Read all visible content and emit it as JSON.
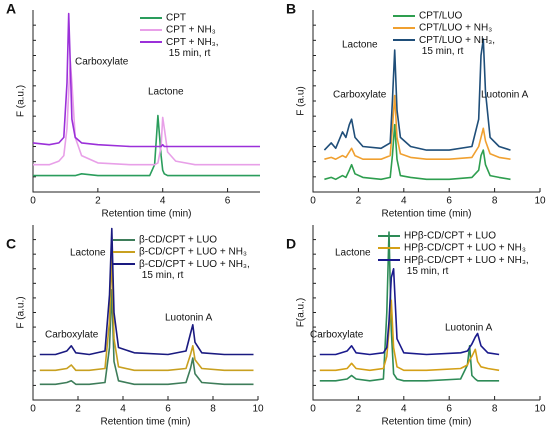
{
  "chart_data": [
    {
      "type": "line",
      "panel": "A",
      "xlabel": "Retention time (min)",
      "ylabel": "F (a.u.)",
      "annotations": [
        "Carboxylate",
        "Lactone"
      ],
      "xlim": [
        0,
        7
      ],
      "xticks": [
        0,
        2,
        4,
        6
      ],
      "ylim": [
        0,
        100
      ],
      "x": [
        0,
        0.5,
        0.8,
        0.95,
        1.05,
        1.1,
        1.15,
        1.2,
        1.3,
        1.5,
        2,
        3,
        3.6,
        3.75,
        3.85,
        3.95,
        4.0,
        4.05,
        4.15,
        4.4,
        5,
        6,
        7
      ],
      "series": [
        {
          "name": "CPT",
          "color": "#2a9d5c",
          "values": [
            9,
            9,
            9,
            9,
            9,
            9,
            9,
            9,
            9,
            10,
            9,
            9,
            9,
            15,
            42,
            20,
            12,
            10,
            9,
            9,
            9,
            9,
            9
          ]
        },
        {
          "name": "CPT + NH₃",
          "color": "#e8a0e8",
          "values": [
            15,
            15,
            17,
            20,
            35,
            55,
            72,
            60,
            30,
            20,
            16,
            15,
            15,
            15,
            16,
            25,
            41,
            35,
            22,
            17,
            15,
            15,
            15
          ]
        },
        {
          "name": "CPT + NH₃, 15 min, rt",
          "color": "#9b30d9",
          "values": [
            27,
            26,
            27,
            30,
            60,
            98,
            70,
            40,
            30,
            27,
            26,
            25,
            25,
            25,
            25,
            25,
            26,
            25,
            25,
            25,
            25,
            25,
            25
          ]
        }
      ]
    },
    {
      "type": "line",
      "panel": "B",
      "xlabel": "Retention time (min)",
      "ylabel": "F (a.u)",
      "annotations": [
        "Carboxylate",
        "Lactone",
        "Luotonin A"
      ],
      "xlim": [
        0,
        10
      ],
      "xticks": [
        0,
        2,
        4,
        6,
        8,
        10
      ],
      "ylim": [
        0,
        100
      ],
      "x": [
        0.5,
        0.8,
        1.0,
        1.3,
        1.45,
        1.6,
        1.7,
        1.85,
        2.2,
        3,
        3.4,
        3.5,
        3.6,
        3.7,
        3.85,
        4.3,
        5,
        6,
        7,
        7.3,
        7.4,
        7.5,
        7.6,
        7.8,
        8.2,
        8.7
      ],
      "series": [
        {
          "name": "CPT/LUO",
          "color": "#2e9e4f",
          "values": [
            7,
            8,
            7,
            9,
            8,
            12,
            15,
            10,
            8,
            7,
            8,
            20,
            37,
            18,
            9,
            8,
            7,
            7,
            8,
            12,
            20,
            23,
            15,
            9,
            8,
            7
          ]
        },
        {
          "name": "CPT/LUO + NH₃",
          "color": "#f0a030",
          "values": [
            18,
            19,
            18,
            20,
            19,
            22,
            24,
            20,
            18,
            18,
            20,
            35,
            53,
            30,
            21,
            19,
            18,
            18,
            19,
            25,
            30,
            35,
            28,
            21,
            19,
            18
          ]
        },
        {
          "name": "CPT/LUO + NH₃, 15 min, rt",
          "color": "#1f4e79",
          "values": [
            23,
            27,
            24,
            33,
            30,
            37,
            40,
            30,
            25,
            24,
            27,
            50,
            78,
            45,
            30,
            25,
            23,
            23,
            25,
            40,
            75,
            84,
            55,
            30,
            25,
            23
          ]
        }
      ]
    },
    {
      "type": "line",
      "panel": "C",
      "xlabel": "Retention time (min)",
      "ylabel": "F (a.u.)",
      "annotations": [
        "Carboxylate",
        "Lactone",
        "Luotonin A"
      ],
      "xlim": [
        0,
        10
      ],
      "xticks": [
        0,
        2,
        4,
        6,
        8,
        10
      ],
      "ylim": [
        0,
        100
      ],
      "x": [
        0.3,
        1.0,
        1.5,
        1.7,
        1.9,
        2.5,
        3.2,
        3.4,
        3.5,
        3.6,
        3.8,
        4.5,
        6,
        6.8,
        7.0,
        7.1,
        7.2,
        7.5,
        8.5,
        9.8
      ],
      "series": [
        {
          "name": "β-CD/CPT + LUO",
          "color": "#3e7d5a",
          "values": [
            9,
            9,
            10,
            11,
            9,
            9,
            10,
            30,
            63,
            22,
            11,
            9,
            9,
            10,
            18,
            24,
            15,
            10,
            9,
            9
          ]
        },
        {
          "name": "β-CD/CPT + LUO + NH₃",
          "color": "#c8a020",
          "values": [
            17,
            17,
            18,
            20,
            17,
            17,
            18,
            45,
            83,
            35,
            19,
            17,
            17,
            18,
            26,
            31,
            23,
            18,
            17,
            17
          ]
        },
        {
          "name": "β-CD/CPT + LUO + NH₃, 15 min, rt",
          "color": "#1a1a80",
          "values": [
            26,
            26,
            28,
            31,
            27,
            26,
            28,
            60,
            98,
            50,
            30,
            27,
            26,
            28,
            38,
            43,
            33,
            27,
            26,
            26
          ]
        }
      ]
    },
    {
      "type": "line",
      "panel": "D",
      "xlabel": "Retention time (min)",
      "ylabel": "F(a.u.)",
      "annotations": [
        "Carboxylate",
        "Lactone",
        "Luotonin A"
      ],
      "xlim": [
        0,
        10
      ],
      "xticks": [
        0,
        2,
        4,
        6,
        8,
        10
      ],
      "ylim": [
        0,
        100
      ],
      "x": [
        0.3,
        1.0,
        1.5,
        1.7,
        1.9,
        2.5,
        3.1,
        3.25,
        3.35,
        3.45,
        3.55,
        3.7,
        4.0,
        5,
        6.5,
        6.8,
        6.9,
        7.0,
        7.15,
        7.25,
        7.4,
        7.7,
        8.2
      ],
      "series": [
        {
          "name": "HPβ-CD/CPT + LUO",
          "color": "#2e8b57",
          "values": [
            11,
            11,
            12,
            14,
            12,
            11,
            12,
            50,
            96,
            40,
            15,
            12,
            11,
            11,
            12,
            20,
            31,
            14,
            12,
            11,
            11,
            11,
            11
          ]
        },
        {
          "name": "HPβ-CD/CPT + LUO + NH₃",
          "color": "#d4a017",
          "values": [
            17,
            17,
            18,
            21,
            18,
            17,
            18,
            25,
            40,
            57,
            30,
            19,
            17,
            17,
            18,
            20,
            23,
            25,
            29,
            22,
            19,
            18,
            17
          ]
        },
        {
          "name": "HPβ-CD/CPT + LUO + NH₃, 15 min, rt",
          "color": "#1a1a8c",
          "values": [
            26,
            26,
            28,
            31,
            27,
            26,
            27,
            30,
            45,
            70,
            75,
            35,
            27,
            26,
            27,
            28,
            30,
            32,
            36,
            38,
            31,
            27,
            26
          ]
        }
      ]
    }
  ]
}
